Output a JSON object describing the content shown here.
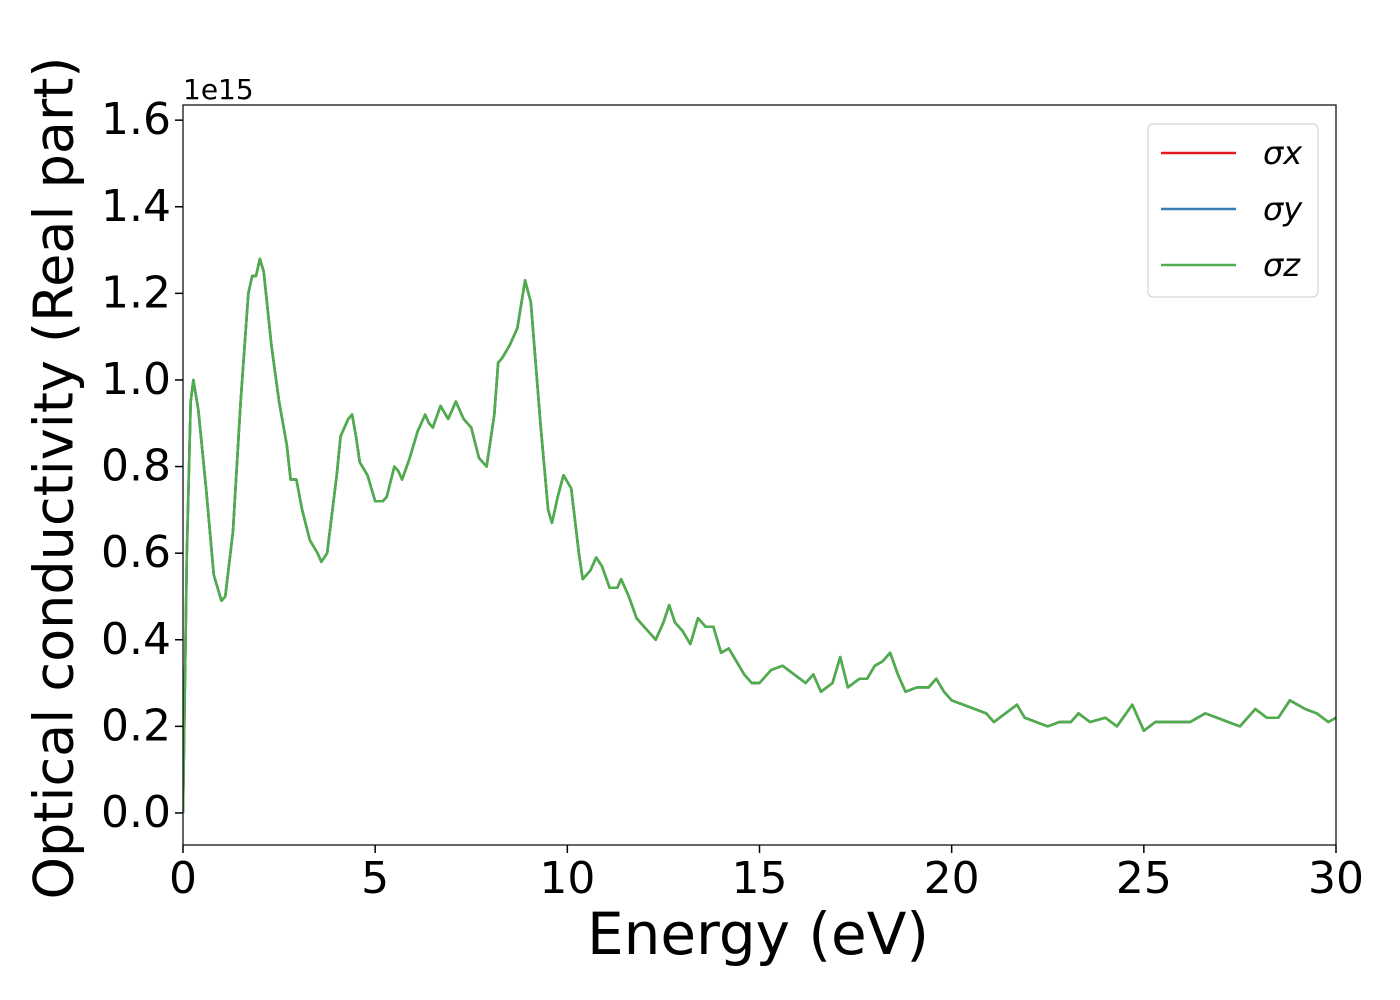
{
  "chart_data": {
    "type": "line",
    "x_label": "Energy (eV)",
    "y_label": "Optical conductivity (Real part)",
    "offset_label": "1e15",
    "xlim": [
      0,
      30
    ],
    "xticks": [
      0,
      5,
      10,
      15,
      20,
      25,
      30
    ],
    "ylim": [
      -0.074,
      1.635
    ],
    "yticks": [
      {
        "value": 0,
        "label": "0.0"
      },
      0.2,
      0.4,
      0.6,
      0.8,
      {
        "value": 1,
        "label": "1.0"
      },
      1.2,
      1.4,
      1.6
    ],
    "legend": "upper right",
    "grid": false,
    "x": [
      0,
      0.1,
      0.2,
      0.27,
      0.4,
      0.6,
      0.8,
      1.0,
      1.1,
      1.3,
      1.5,
      1.7,
      1.8,
      1.9,
      2.0,
      2.1,
      2.3,
      2.5,
      2.7,
      2.8,
      2.95,
      3.1,
      3.3,
      3.5,
      3.6,
      3.75,
      4.0,
      4.1,
      4.3,
      4.4,
      4.5,
      4.6,
      4.8,
      5.0,
      5.2,
      5.3,
      5.5,
      5.6,
      5.7,
      5.9,
      6.1,
      6.3,
      6.4,
      6.5,
      6.7,
      6.9,
      7.1,
      7.3,
      7.5,
      7.7,
      7.9,
      8.1,
      8.2,
      8.3,
      8.5,
      8.7,
      8.9,
      9.05,
      9.3,
      9.5,
      9.6,
      9.75,
      9.9,
      10.1,
      10.3,
      10.4,
      10.6,
      10.75,
      10.9,
      11.1,
      11.3,
      11.4,
      11.6,
      11.8,
      12.0,
      12.3,
      12.5,
      12.65,
      12.8,
      13.0,
      13.2,
      13.4,
      13.6,
      13.8,
      14.0,
      14.2,
      14.4,
      14.6,
      14.8,
      15.0,
      15.3,
      15.6,
      15.9,
      16.2,
      16.4,
      16.6,
      16.9,
      17.1,
      17.3,
      17.6,
      17.8,
      18.0,
      18.2,
      18.4,
      18.6,
      18.8,
      19.1,
      19.4,
      19.6,
      19.8,
      20.0,
      20.3,
      20.6,
      20.9,
      21.1,
      21.4,
      21.7,
      21.9,
      22.2,
      22.5,
      22.8,
      23.1,
      23.3,
      23.6,
      24.0,
      24.3,
      24.7,
      25.0,
      25.3,
      25.6,
      25.9,
      26.2,
      26.6,
      26.9,
      27.2,
      27.5,
      27.9,
      28.2,
      28.5,
      28.8,
      29.2,
      29.5,
      29.8,
      30.0
    ],
    "series": [
      {
        "name": "σx",
        "color": "#e41a1c",
        "values": [
          0,
          0.6,
          0.95,
          1.0,
          0.93,
          0.75,
          0.55,
          0.49,
          0.5,
          0.65,
          0.95,
          1.2,
          1.24,
          1.24,
          1.28,
          1.25,
          1.08,
          0.95,
          0.85,
          0.77,
          0.77,
          0.7,
          0.63,
          0.6,
          0.58,
          0.6,
          0.78,
          0.87,
          0.91,
          0.92,
          0.87,
          0.81,
          0.78,
          0.72,
          0.72,
          0.73,
          0.8,
          0.79,
          0.77,
          0.82,
          0.88,
          0.92,
          0.9,
          0.89,
          0.94,
          0.91,
          0.95,
          0.91,
          0.89,
          0.82,
          0.8,
          0.92,
          1.04,
          1.05,
          1.08,
          1.12,
          1.23,
          1.18,
          0.9,
          0.7,
          0.67,
          0.73,
          0.78,
          0.75,
          0.6,
          0.54,
          0.56,
          0.59,
          0.57,
          0.52,
          0.52,
          0.54,
          0.5,
          0.45,
          0.43,
          0.4,
          0.44,
          0.48,
          0.44,
          0.42,
          0.39,
          0.45,
          0.43,
          0.43,
          0.37,
          0.38,
          0.35,
          0.32,
          0.3,
          0.3,
          0.33,
          0.34,
          0.32,
          0.3,
          0.32,
          0.28,
          0.3,
          0.36,
          0.29,
          0.31,
          0.31,
          0.34,
          0.35,
          0.37,
          0.32,
          0.28,
          0.29,
          0.29,
          0.31,
          0.28,
          0.26,
          0.25,
          0.24,
          0.23,
          0.21,
          0.23,
          0.25,
          0.22,
          0.21,
          0.2,
          0.21,
          0.21,
          0.23,
          0.21,
          0.22,
          0.2,
          0.25,
          0.19,
          0.21,
          0.21,
          0.21,
          0.21,
          0.23,
          0.22,
          0.21,
          0.2,
          0.24,
          0.22,
          0.22,
          0.26,
          0.24,
          0.23,
          0.21,
          0.22
        ]
      },
      {
        "name": "σy",
        "color": "#377eb8",
        "values": [
          0,
          0.6,
          0.95,
          1.0,
          0.93,
          0.75,
          0.55,
          0.49,
          0.5,
          0.65,
          0.95,
          1.2,
          1.24,
          1.24,
          1.28,
          1.25,
          1.08,
          0.95,
          0.85,
          0.77,
          0.77,
          0.7,
          0.63,
          0.6,
          0.58,
          0.6,
          0.78,
          0.87,
          0.91,
          0.92,
          0.87,
          0.81,
          0.78,
          0.72,
          0.72,
          0.73,
          0.8,
          0.79,
          0.77,
          0.82,
          0.88,
          0.92,
          0.9,
          0.89,
          0.94,
          0.91,
          0.95,
          0.91,
          0.89,
          0.82,
          0.8,
          0.92,
          1.04,
          1.05,
          1.08,
          1.12,
          1.23,
          1.18,
          0.9,
          0.7,
          0.67,
          0.73,
          0.78,
          0.75,
          0.6,
          0.54,
          0.56,
          0.59,
          0.57,
          0.52,
          0.52,
          0.54,
          0.5,
          0.45,
          0.43,
          0.4,
          0.44,
          0.48,
          0.44,
          0.42,
          0.39,
          0.45,
          0.43,
          0.43,
          0.37,
          0.38,
          0.35,
          0.32,
          0.3,
          0.3,
          0.33,
          0.34,
          0.32,
          0.3,
          0.32,
          0.28,
          0.3,
          0.36,
          0.29,
          0.31,
          0.31,
          0.34,
          0.35,
          0.37,
          0.32,
          0.28,
          0.29,
          0.29,
          0.31,
          0.28,
          0.26,
          0.25,
          0.24,
          0.23,
          0.21,
          0.23,
          0.25,
          0.22,
          0.21,
          0.2,
          0.21,
          0.21,
          0.23,
          0.21,
          0.22,
          0.2,
          0.25,
          0.19,
          0.21,
          0.21,
          0.21,
          0.21,
          0.23,
          0.22,
          0.21,
          0.2,
          0.24,
          0.22,
          0.22,
          0.26,
          0.24,
          0.23,
          0.21,
          0.22
        ]
      },
      {
        "name": "σz",
        "color": "#4daf4a",
        "values": [
          0,
          0.6,
          0.95,
          1.0,
          0.93,
          0.75,
          0.55,
          0.49,
          0.5,
          0.65,
          0.95,
          1.2,
          1.24,
          1.24,
          1.28,
          1.25,
          1.08,
          0.95,
          0.85,
          0.77,
          0.77,
          0.7,
          0.63,
          0.6,
          0.58,
          0.6,
          0.78,
          0.87,
          0.91,
          0.92,
          0.87,
          0.81,
          0.78,
          0.72,
          0.72,
          0.73,
          0.8,
          0.79,
          0.77,
          0.82,
          0.88,
          0.92,
          0.9,
          0.89,
          0.94,
          0.91,
          0.95,
          0.91,
          0.89,
          0.82,
          0.8,
          0.92,
          1.04,
          1.05,
          1.08,
          1.12,
          1.23,
          1.18,
          0.9,
          0.7,
          0.67,
          0.73,
          0.78,
          0.75,
          0.6,
          0.54,
          0.56,
          0.59,
          0.57,
          0.52,
          0.52,
          0.54,
          0.5,
          0.45,
          0.43,
          0.4,
          0.44,
          0.48,
          0.44,
          0.42,
          0.39,
          0.45,
          0.43,
          0.43,
          0.37,
          0.38,
          0.35,
          0.32,
          0.3,
          0.3,
          0.33,
          0.34,
          0.32,
          0.3,
          0.32,
          0.28,
          0.3,
          0.36,
          0.29,
          0.31,
          0.31,
          0.34,
          0.35,
          0.37,
          0.32,
          0.28,
          0.29,
          0.29,
          0.31,
          0.28,
          0.26,
          0.25,
          0.24,
          0.23,
          0.21,
          0.23,
          0.25,
          0.22,
          0.21,
          0.2,
          0.21,
          0.21,
          0.23,
          0.21,
          0.22,
          0.2,
          0.25,
          0.19,
          0.21,
          0.21,
          0.21,
          0.21,
          0.23,
          0.22,
          0.21,
          0.2,
          0.24,
          0.22,
          0.22,
          0.26,
          0.24,
          0.23,
          0.21,
          0.22
        ]
      }
    ]
  }
}
